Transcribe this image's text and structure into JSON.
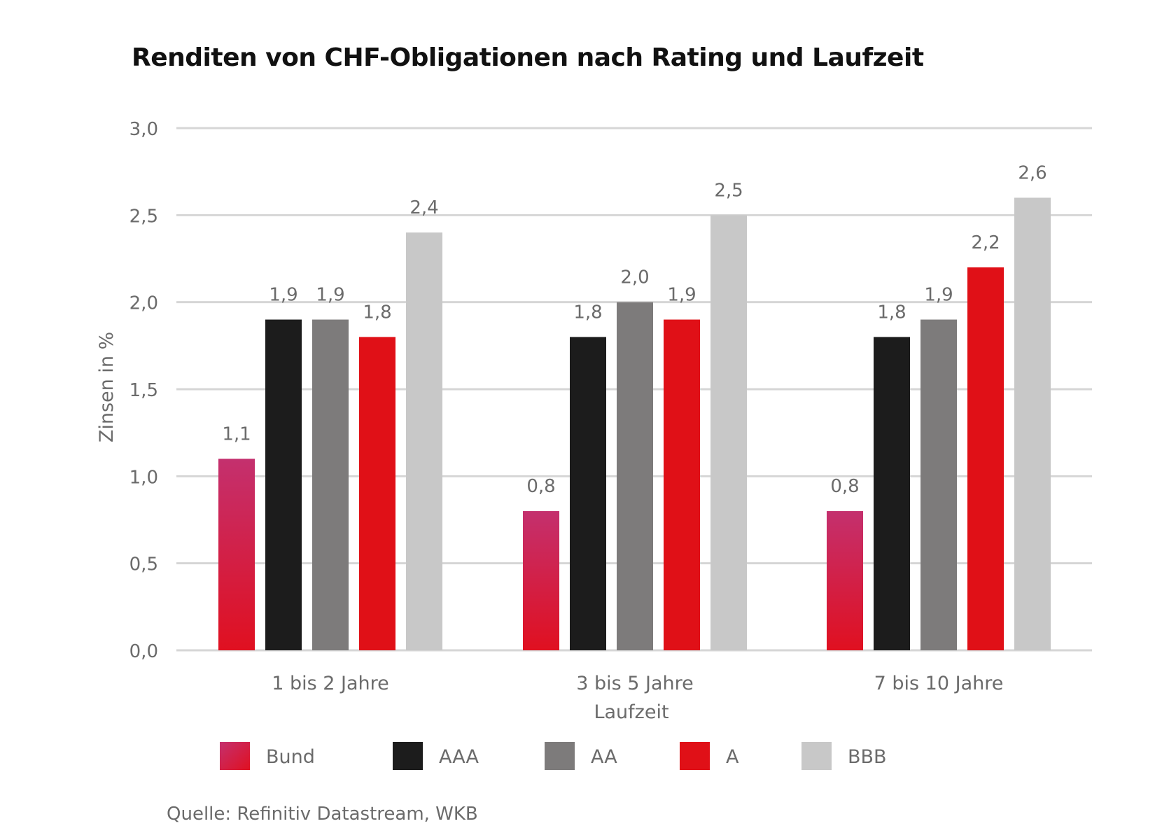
{
  "chart_data": {
    "type": "bar",
    "title": "Renditen von CHF-Obligationen nach Rating und Laufzeit",
    "xlabel": "Laufzeit",
    "ylabel": "Zinsen in %",
    "ylim": [
      0,
      3
    ],
    "yticks": [
      "0,0",
      "0,5",
      "1,0",
      "1,5",
      "2,0",
      "2,5",
      "3,0"
    ],
    "ytick_values": [
      0,
      0.5,
      1,
      1.5,
      2,
      2.5,
      3
    ],
    "grid": true,
    "legend_position": "bottom",
    "categories": [
      "1 bis 2 Jahre",
      "3 bis 5 Jahre",
      "7 bis 10 Jahre"
    ],
    "series": [
      {
        "name": "Bund",
        "values": [
          1.1,
          0.8,
          0.8
        ],
        "labels": [
          "1,1",
          "0,8",
          "0,8"
        ],
        "color": "#c4306e",
        "color2": "#e01020"
      },
      {
        "name": "AAA",
        "values": [
          1.9,
          1.8,
          1.8
        ],
        "labels": [
          "1,9",
          "1,8",
          "1,8"
        ],
        "color": "#1c1c1c"
      },
      {
        "name": "AA",
        "values": [
          1.9,
          2.0,
          1.9
        ],
        "labels": [
          "1,9",
          "2,0",
          "1,9"
        ],
        "color": "#7d7b7b"
      },
      {
        "name": "A",
        "values": [
          1.8,
          1.9,
          2.2
        ],
        "labels": [
          "1,8",
          "1,9",
          "2,2"
        ],
        "color": "#e01017"
      },
      {
        "name": "BBB",
        "values": [
          2.4,
          2.5,
          2.6
        ],
        "labels": [
          "2,4",
          "2,5",
          "2,6"
        ],
        "color": "#c8c8c8"
      }
    ]
  },
  "source": "Quelle: Refinitiv Datastream, WKB"
}
